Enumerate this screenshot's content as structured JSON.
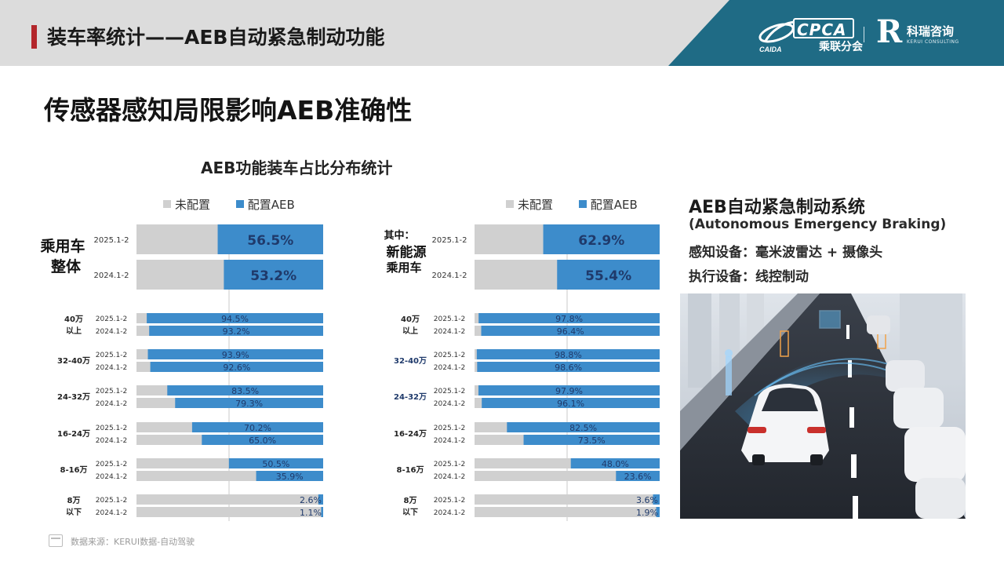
{
  "header": {
    "title": "装车率统计——AEB自动紧急制动功能",
    "logo_cpca": "CPCA",
    "logo_cpca_sub": "乘联分会",
    "logo_cpca_mark": "CAIDA",
    "logo_kerui": "科瑞咨询",
    "logo_kerui_en": "KERUI CONSULTING"
  },
  "subtitle": "传感器感知局限影响AEB准确性",
  "colors": {
    "accent_red": "#b3262b",
    "logo_panel": "#1f6b85",
    "bar_gray": "#d0d0d0",
    "bar_blue": "#3d8ccb",
    "label_navy": "#1f3a6b"
  },
  "chart_data": [
    {
      "type": "bar",
      "title": "AEB功能装车占比分布统计",
      "orientation": "horizontal-stacked-100",
      "legend": [
        "未配置",
        "配置AEB"
      ],
      "overall": {
        "label_line1": "乘用车",
        "label_line2": "整体",
        "rows": [
          {
            "period": "2025.1-2",
            "aeb": 56.5,
            "aeb_label": "56.5%"
          },
          {
            "period": "2024.1-2",
            "aeb": 53.2,
            "aeb_label": "53.2%"
          }
        ]
      },
      "segments": [
        {
          "label_line1": "40万",
          "label_line2": "以上",
          "rows": [
            {
              "period": "2025.1-2",
              "aeb": 94.5,
              "aeb_label": "94.5%"
            },
            {
              "period": "2024.1-2",
              "aeb": 93.2,
              "aeb_label": "93.2%"
            }
          ]
        },
        {
          "label_line1": "32-40万",
          "label_line2": "",
          "rows": [
            {
              "period": "2025.1-2",
              "aeb": 93.9,
              "aeb_label": "93.9%"
            },
            {
              "period": "2024.1-2",
              "aeb": 92.6,
              "aeb_label": "92.6%"
            }
          ]
        },
        {
          "label_line1": "24-32万",
          "label_line2": "",
          "rows": [
            {
              "period": "2025.1-2",
              "aeb": 83.5,
              "aeb_label": "83.5%"
            },
            {
              "period": "2024.1-2",
              "aeb": 79.3,
              "aeb_label": "79.3%"
            }
          ]
        },
        {
          "label_line1": "16-24万",
          "label_line2": "",
          "rows": [
            {
              "period": "2025.1-2",
              "aeb": 70.2,
              "aeb_label": "70.2%"
            },
            {
              "period": "2024.1-2",
              "aeb": 65.0,
              "aeb_label": "65.0%"
            }
          ]
        },
        {
          "label_line1": "8-16万",
          "label_line2": "",
          "rows": [
            {
              "period": "2025.1-2",
              "aeb": 50.5,
              "aeb_label": "50.5%"
            },
            {
              "period": "2024.1-2",
              "aeb": 35.9,
              "aeb_label": "35.9%"
            }
          ]
        },
        {
          "label_line1": "8万",
          "label_line2": "以下",
          "rows": [
            {
              "period": "2025.1-2",
              "aeb": 2.6,
              "aeb_label": "2.6%"
            },
            {
              "period": "2024.1-2",
              "aeb": 1.1,
              "aeb_label": "1.1%"
            }
          ]
        }
      ]
    },
    {
      "type": "bar",
      "title": "",
      "orientation": "horizontal-stacked-100",
      "legend": [
        "未配置",
        "配置AEB"
      ],
      "overall": {
        "label_prefix": "其中：",
        "label_line1": "新能源",
        "label_line2": "乘用车",
        "rows": [
          {
            "period": "2025.1-2",
            "aeb": 62.9,
            "aeb_label": "62.9%"
          },
          {
            "period": "2024.1-2",
            "aeb": 55.4,
            "aeb_label": "55.4%"
          }
        ]
      },
      "segments": [
        {
          "label_line1": "40万",
          "label_line2": "以上",
          "rows": [
            {
              "period": "2025.1-2",
              "aeb": 97.8,
              "aeb_label": "97.8%"
            },
            {
              "period": "2024.1-2",
              "aeb": 96.4,
              "aeb_label": "96.4%"
            }
          ]
        },
        {
          "label_line1": "32-40万",
          "label_line2": "",
          "highlight": true,
          "rows": [
            {
              "period": "2025.1-2",
              "aeb": 98.8,
              "aeb_label": "98.8%"
            },
            {
              "period": "2024.1-2",
              "aeb": 98.6,
              "aeb_label": "98.6%"
            }
          ]
        },
        {
          "label_line1": "24-32万",
          "label_line2": "",
          "highlight": true,
          "rows": [
            {
              "period": "2025.1-2",
              "aeb": 97.9,
              "aeb_label": "97.9%"
            },
            {
              "period": "2024.1-2",
              "aeb": 96.1,
              "aeb_label": "96.1%"
            }
          ]
        },
        {
          "label_line1": "16-24万",
          "label_line2": "",
          "rows": [
            {
              "period": "2025.1-2",
              "aeb": 82.5,
              "aeb_label": "82.5%"
            },
            {
              "period": "2024.1-2",
              "aeb": 73.5,
              "aeb_label": "73.5%"
            }
          ]
        },
        {
          "label_line1": "8-16万",
          "label_line2": "",
          "rows": [
            {
              "period": "2025.1-2",
              "aeb": 48.0,
              "aeb_label": "48.0%"
            },
            {
              "period": "2024.1-2",
              "aeb": 23.6,
              "aeb_label": "23.6%"
            }
          ]
        },
        {
          "label_line1": "8万",
          "label_line2": "以下",
          "rows": [
            {
              "period": "2025.1-2",
              "aeb": 3.6,
              "aeb_label": "3.6%"
            },
            {
              "period": "2024.1-2",
              "aeb": 1.9,
              "aeb_label": "1.9%"
            }
          ]
        }
      ]
    }
  ],
  "info": {
    "title": "AEB自动紧急制动系统",
    "subtitle": "(Autonomous Emergency Braking)",
    "line1": "感知设备：毫米波雷达 + 摄像头",
    "line2": "执行设备：线控制动"
  },
  "footer": {
    "source": "数据来源：KERUI数据-自动驾驶"
  }
}
